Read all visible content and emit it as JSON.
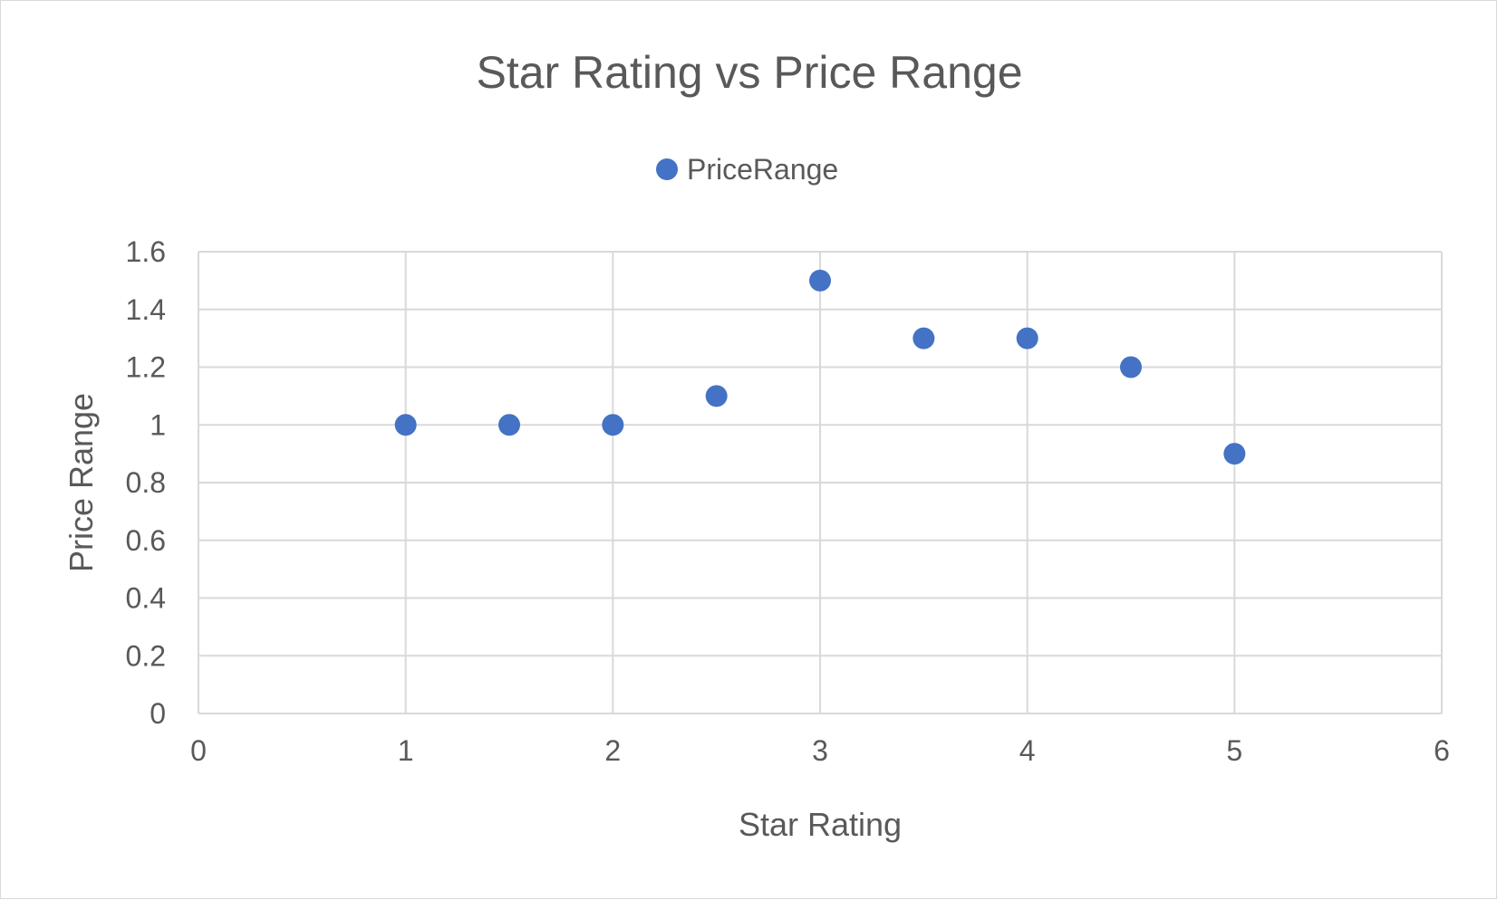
{
  "chart_data": {
    "type": "scatter",
    "title": "Star Rating vs Price Range",
    "xlabel": "Star Rating",
    "ylabel": "Price Range",
    "xlim": [
      0,
      6
    ],
    "ylim": [
      0,
      1.6
    ],
    "x_ticks": [
      "0",
      "1",
      "2",
      "3",
      "4",
      "5",
      "6"
    ],
    "y_ticks": [
      "0",
      "0.2",
      "0.4",
      "0.6",
      "0.8",
      "1",
      "1.2",
      "1.4",
      "1.6"
    ],
    "grid": true,
    "legend_position": "top-center",
    "series": [
      {
        "name": "PriceRange",
        "color": "#4472c4",
        "points": [
          {
            "x": 1,
            "y": 1.0
          },
          {
            "x": 1.5,
            "y": 1.0
          },
          {
            "x": 2,
            "y": 1.0
          },
          {
            "x": 2.5,
            "y": 1.1
          },
          {
            "x": 3,
            "y": 1.5
          },
          {
            "x": 3.5,
            "y": 1.3
          },
          {
            "x": 4,
            "y": 1.3
          },
          {
            "x": 4.5,
            "y": 1.2
          },
          {
            "x": 5,
            "y": 0.9
          }
        ]
      }
    ]
  }
}
